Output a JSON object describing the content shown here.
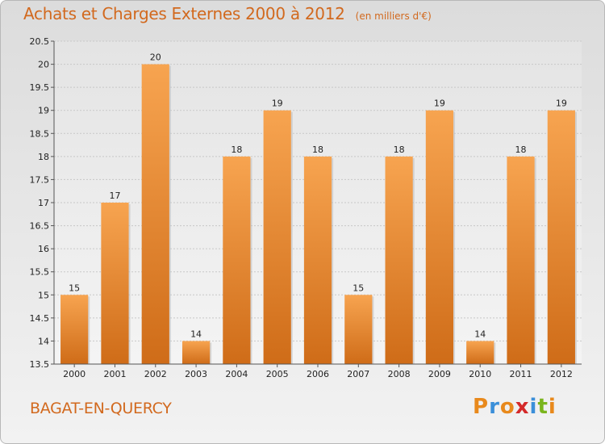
{
  "header": {
    "title": "Achats et Charges Externes 2000 à 2012",
    "subtitle": "(en milliers d'€)"
  },
  "footer": {
    "place": "BAGAT-EN-QUERCY",
    "logo": "Proxiti",
    "logo_colors": [
      "#e8891c",
      "#3b8fd9",
      "#e8891c",
      "#d42a2a",
      "#3b8fd9",
      "#7ab51d",
      "#e8891c"
    ]
  },
  "chart_data": {
    "type": "bar",
    "title": "Achats et Charges Externes 2000 à 2012",
    "subtitle": "(en milliers d'€)",
    "categories": [
      "2000",
      "2001",
      "2002",
      "2003",
      "2004",
      "2005",
      "2006",
      "2007",
      "2008",
      "2009",
      "2010",
      "2011",
      "2012"
    ],
    "values": [
      15,
      17,
      20,
      14,
      18,
      19,
      18,
      15,
      18,
      19,
      14,
      18,
      19
    ],
    "value_labels": [
      "15",
      "17",
      "20",
      "14",
      "18",
      "19",
      "18",
      "15",
      "18",
      "19",
      "14",
      "18",
      "19"
    ],
    "ylim": [
      13.5,
      20.5
    ],
    "yticks": [
      13.5,
      14,
      14.5,
      15,
      15.5,
      16,
      16.5,
      17,
      17.5,
      18,
      18.5,
      19,
      19.5,
      20,
      20.5
    ],
    "ytick_labels": [
      "13.5",
      "14",
      "14.5",
      "15",
      "15.5",
      "16",
      "16.5",
      "17",
      "17.5",
      "18",
      "18.5",
      "19",
      "19.5",
      "20",
      "20.5"
    ],
    "grid": true,
    "bar_color_top": "#f7a450",
    "bar_color_bottom": "#cf6c18"
  }
}
